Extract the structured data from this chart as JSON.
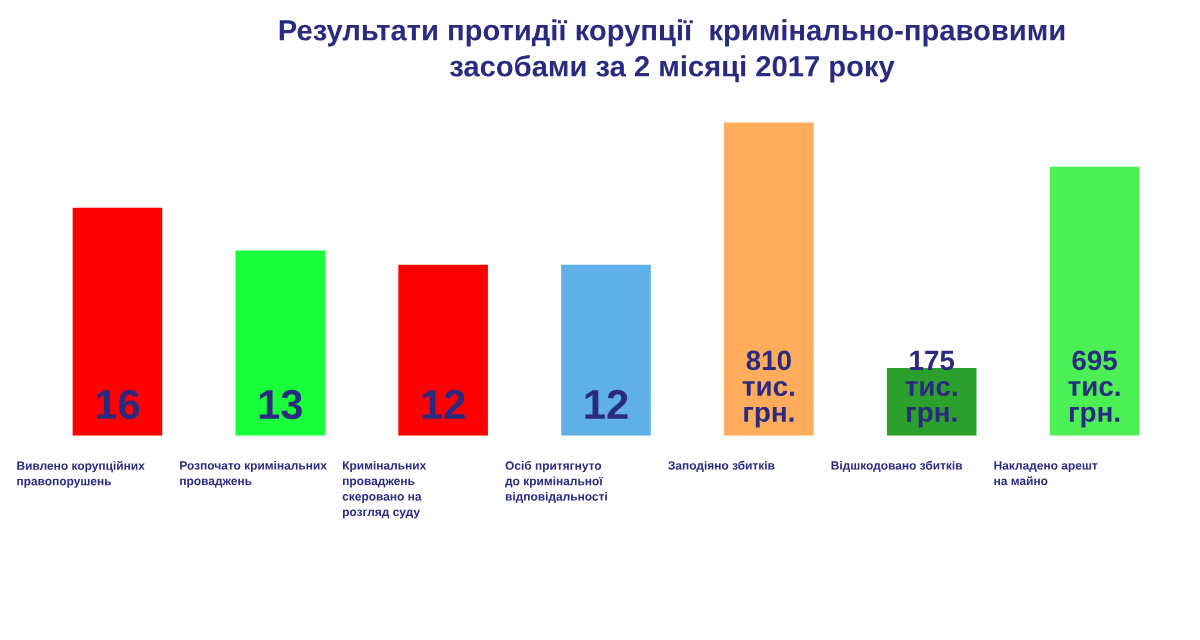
{
  "chart_data": {
    "type": "bar",
    "title": "Результати протидії корупції  кримінально-правовими\nзасобами за 2 місяці 2017 року",
    "categories": [
      "Вивлено корупційних\nправопорушень",
      "Розпочато кримінальних\nпроваджень",
      "Кримінальних\nпроваджень\nскеровано на\nрозгляд суду",
      "Осіб притягнуто\nдо кримінальної\nвідповідальності",
      "Заподіяно збитків",
      "Відшкодовано збитків",
      "Накладено арешт\nна майно"
    ],
    "series": [
      {
        "colors": [
          "#ff0000",
          "#1aff3c",
          "#ff0000",
          "#5fb0e6",
          null,
          null,
          null
        ],
        "values": [
          16,
          13,
          12,
          12,
          null,
          null,
          null
        ],
        "value_labels": [
          "16",
          "13",
          "12",
          "12",
          null,
          null,
          null
        ]
      },
      {
        "axis": "y2",
        "colors": [
          null,
          null,
          null,
          null,
          "#ffad5c",
          "#2ca02c",
          "#4cf054"
        ],
        "values": [
          null,
          null,
          null,
          null,
          810,
          175,
          695
        ],
        "value_labels": [
          null,
          null,
          null,
          null,
          "810\nтис.\nгрн.",
          "175\nтис.\nгрн.",
          "695\nтис.\nгрн."
        ]
      }
    ],
    "ylim": [
      0,
      22
    ],
    "y2lim": [
      0,
      810
    ],
    "tick_labels": false
  }
}
